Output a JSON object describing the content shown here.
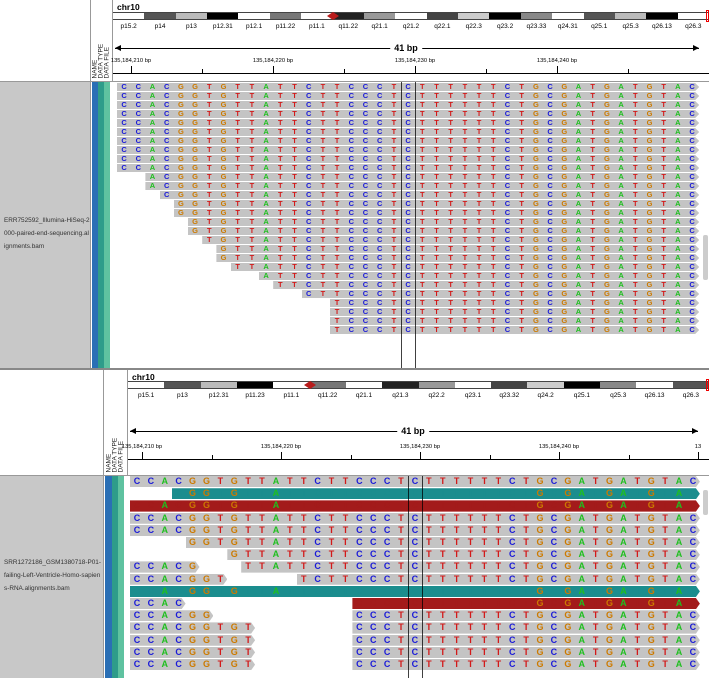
{
  "panels": [
    {
      "id": "top",
      "chromosome": "chr10",
      "attribute_headers": [
        "NAME",
        "DATA TYPE",
        "DATA FILE"
      ],
      "cytobands": [
        "p15.2",
        "p14",
        "p13",
        "p12.31",
        "p12.1",
        "p11.22",
        "p11.1",
        "q11.22",
        "q21.1",
        "q21.2",
        "q22.1",
        "q22.3",
        "q23.2",
        "q23.33",
        "q24.31",
        "q25.1",
        "q25.3",
        "q26.13",
        "q26.3"
      ],
      "span": "41 bp",
      "ticks": [
        "135,184,210 bp",
        "135,184,220 bp",
        "135,184,230 bp",
        "135,184,240 bp"
      ],
      "track_name": "ERR752592_Illumina-HiSeq-2000-paired-end-sequencing.alignments.bam",
      "reference": "CCACGGTGTTATTCTTCCCTCTTTTTTCTGCGATGATGTAC"
    },
    {
      "id": "bottom",
      "chromosome": "chr10",
      "attribute_headers": [
        "NAME",
        "DATA TYPE",
        "DATA FILE"
      ],
      "cytobands": [
        "p15.1",
        "p13",
        "p12.31",
        "p11.23",
        "p11.1",
        "q11.22",
        "q21.1",
        "q21.3",
        "q22.2",
        "q23.1",
        "q23.32",
        "q24.2",
        "q25.1",
        "q25.3",
        "q26.13",
        "q26.3"
      ],
      "span": "41 bp",
      "ticks": [
        "135,184,210 bp",
        "135,184,220 bp",
        "135,184,230 bp",
        "135,184,240 bp",
        "13"
      ],
      "track_name": "SRR1272186_GSM1380718-P01-failing-Left-Ventricle-Homo-sapiens-RNA.alignments.bam",
      "reference": "CCACGGTGTTATTCTTCCCTCTTTTTTCTGCGATGATGTAC"
    }
  ],
  "colors": {
    "A": "#1fbf1f",
    "C": "#1a1ad8",
    "G": "#cc7a00",
    "T": "#d21a1a",
    "attr_name": "#2a6fb5",
    "attr_type": "#2e9c8a",
    "attr_file": "#5fc2a0"
  }
}
